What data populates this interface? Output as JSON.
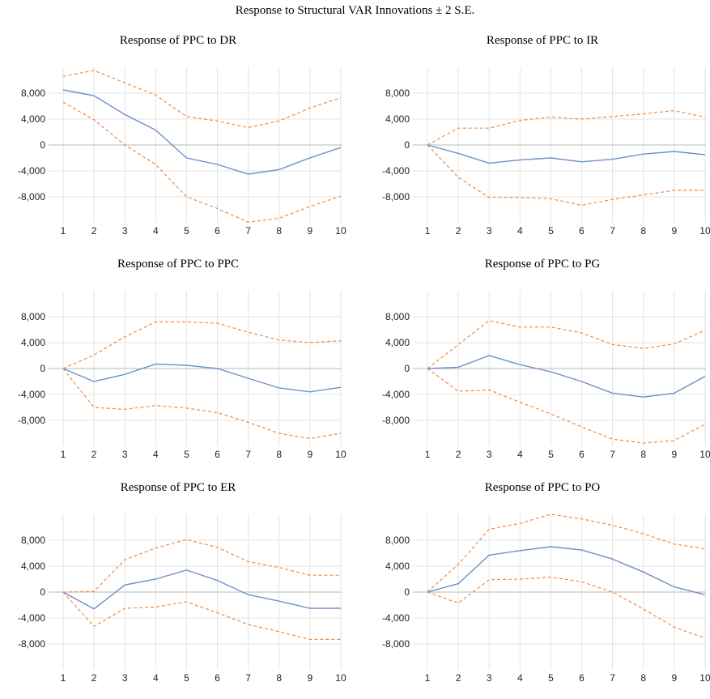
{
  "title": "Response to Structural VAR Innovations ± 2 S.E.",
  "colors": {
    "response": "#6f8fca",
    "band": "#ed8b45",
    "grid": "#e3e3e3",
    "zero": "#b8b8b8"
  },
  "chart_data": [
    {
      "type": "line",
      "title": "Response of PPC to DR",
      "x": [
        1,
        2,
        3,
        4,
        5,
        6,
        7,
        8,
        9,
        10
      ],
      "ylim": [
        -12000,
        12000
      ],
      "yticks": [
        8000,
        4000,
        0,
        -4000,
        -8000
      ],
      "ytick_labels": [
        "8,000",
        "4,000",
        "0",
        "-4,000",
        "-8,000"
      ],
      "grid": true,
      "series": [
        {
          "role": "response",
          "values": [
            8500,
            7600,
            4700,
            2300,
            -2000,
            -3000,
            -4500,
            -3800,
            -2000,
            -400
          ]
        },
        {
          "role": "upper",
          "values": [
            10600,
            11500,
            9600,
            7700,
            4400,
            3700,
            2700,
            3700,
            5700,
            7300
          ]
        },
        {
          "role": "lower",
          "values": [
            6600,
            3900,
            0,
            -3000,
            -8000,
            -9800,
            -11900,
            -11300,
            -9500,
            -7900
          ]
        }
      ]
    },
    {
      "type": "line",
      "title": "Response of PPC to IR",
      "x": [
        1,
        2,
        3,
        4,
        5,
        6,
        7,
        8,
        9,
        10
      ],
      "ylim": [
        -12000,
        12000
      ],
      "yticks": [
        8000,
        4000,
        0,
        -4000,
        -8000
      ],
      "ytick_labels": [
        "8,000",
        "4,000",
        "0",
        "-4,000",
        "-8,000"
      ],
      "grid": true,
      "series": [
        {
          "role": "response",
          "values": [
            0,
            -1300,
            -2800,
            -2300,
            -2000,
            -2600,
            -2200,
            -1400,
            -1000,
            -1500
          ]
        },
        {
          "role": "upper",
          "values": [
            0,
            2600,
            2600,
            3800,
            4300,
            4000,
            4400,
            4800,
            5300,
            4300
          ]
        },
        {
          "role": "lower",
          "values": [
            0,
            -5000,
            -8100,
            -8100,
            -8300,
            -9300,
            -8400,
            -7700,
            -7000,
            -7000
          ]
        }
      ]
    },
    {
      "type": "line",
      "title": "Response of PPC to PPC",
      "x": [
        1,
        2,
        3,
        4,
        5,
        6,
        7,
        8,
        9,
        10
      ],
      "ylim": [
        -12000,
        12000
      ],
      "yticks": [
        8000,
        4000,
        0,
        -4000,
        -8000
      ],
      "ytick_labels": [
        "8,000",
        "4,000",
        "0",
        "-4,000",
        "-8,000"
      ],
      "grid": true,
      "series": [
        {
          "role": "response",
          "values": [
            0,
            -2000,
            -900,
            700,
            500,
            0,
            -1500,
            -3000,
            -3600,
            -2900
          ]
        },
        {
          "role": "upper",
          "values": [
            0,
            2100,
            4900,
            7200,
            7200,
            7000,
            5600,
            4400,
            4000,
            4300
          ]
        },
        {
          "role": "lower",
          "values": [
            0,
            -6000,
            -6300,
            -5700,
            -6100,
            -6800,
            -8300,
            -10000,
            -10800,
            -10000
          ]
        }
      ]
    },
    {
      "type": "line",
      "title": "Response of PPC to PG",
      "x": [
        1,
        2,
        3,
        4,
        5,
        6,
        7,
        8,
        9,
        10
      ],
      "ylim": [
        -12000,
        12000
      ],
      "yticks": [
        8000,
        4000,
        0,
        -4000,
        -8000
      ],
      "ytick_labels": [
        "8,000",
        "4,000",
        "0",
        "-4,000",
        "-8,000"
      ],
      "grid": true,
      "series": [
        {
          "role": "response",
          "values": [
            0,
            200,
            2000,
            600,
            -500,
            -2000,
            -3800,
            -4400,
            -3800,
            -1200
          ]
        },
        {
          "role": "upper",
          "values": [
            0,
            3700,
            7400,
            6400,
            6400,
            5500,
            3700,
            3100,
            3800,
            5900
          ]
        },
        {
          "role": "lower",
          "values": [
            0,
            -3500,
            -3300,
            -5200,
            -7000,
            -9000,
            -10900,
            -11500,
            -11100,
            -8600
          ]
        }
      ]
    },
    {
      "type": "line",
      "title": "Response of PPC to ER",
      "x": [
        1,
        2,
        3,
        4,
        5,
        6,
        7,
        8,
        9,
        10
      ],
      "ylim": [
        -12000,
        12000
      ],
      "yticks": [
        8000,
        4000,
        0,
        -4000,
        -8000
      ],
      "ytick_labels": [
        "8,000",
        "4,000",
        "0",
        "-4,000",
        "-8,000"
      ],
      "grid": true,
      "series": [
        {
          "role": "response",
          "values": [
            0,
            -2600,
            1100,
            2000,
            3400,
            1800,
            -400,
            -1400,
            -2500,
            -2500
          ]
        },
        {
          "role": "upper",
          "values": [
            0,
            100,
            5000,
            6800,
            8100,
            6900,
            4700,
            3800,
            2600,
            2600
          ]
        },
        {
          "role": "lower",
          "values": [
            0,
            -5300,
            -2500,
            -2300,
            -1500,
            -3200,
            -5000,
            -6100,
            -7300,
            -7300
          ]
        }
      ]
    },
    {
      "type": "line",
      "title": "Response of PPC to PO",
      "x": [
        1,
        2,
        3,
        4,
        5,
        6,
        7,
        8,
        9,
        10
      ],
      "ylim": [
        -12000,
        12000
      ],
      "yticks": [
        8000,
        4000,
        0,
        -4000,
        -8000
      ],
      "ytick_labels": [
        "8,000",
        "4,000",
        "0",
        "-4,000",
        "-8,000"
      ],
      "grid": true,
      "series": [
        {
          "role": "response",
          "values": [
            0,
            1300,
            5700,
            6400,
            7000,
            6500,
            5100,
            3100,
            800,
            -400
          ]
        },
        {
          "role": "upper",
          "values": [
            0,
            4300,
            9700,
            10600,
            12000,
            11300,
            10300,
            9000,
            7400,
            6700
          ]
        },
        {
          "role": "lower",
          "values": [
            0,
            -1700,
            1900,
            2000,
            2300,
            1600,
            0,
            -2600,
            -5400,
            -7100
          ]
        }
      ]
    }
  ]
}
